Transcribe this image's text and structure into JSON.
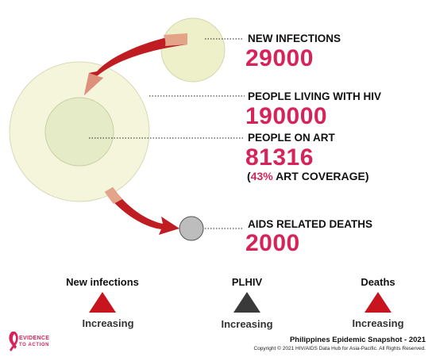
{
  "stats": {
    "new_infections": {
      "label": "NEW INFECTIONS",
      "value": "29000"
    },
    "plhiv": {
      "label": "PEOPLE LIVING WITH HIV",
      "value": "190000"
    },
    "on_art": {
      "label": "PEOPLE ON ART",
      "value": "81316",
      "coverage_open": "(",
      "coverage_pct": "43%",
      "coverage_text": " ART COVERAGE)"
    },
    "deaths": {
      "label": "AIDS RELATED DEATHS",
      "value": "2000"
    }
  },
  "trends": [
    {
      "title": "New infections",
      "status": "Increasing",
      "color": "#c8141e"
    },
    {
      "title": "PLHIV",
      "status": "Increasing",
      "color": "#3a3a3a"
    },
    {
      "title": "Deaths",
      "status": "Increasing",
      "color": "#c8141e"
    }
  ],
  "footer": {
    "title": "Philippines Epidemic Snapshot - 2021",
    "copyright": "Copyright © 2021 HIV/AIDS Data Hub for Asia-Pacific. All Rights Reserved."
  },
  "logo": {
    "line1": "EVIDENCE",
    "line2": "TO ACTION"
  },
  "colors": {
    "accent": "#d6245b",
    "arrow": "#b8141c",
    "circle_fill": "#f3f3d2",
    "art_fill": "#e6ecc4"
  }
}
